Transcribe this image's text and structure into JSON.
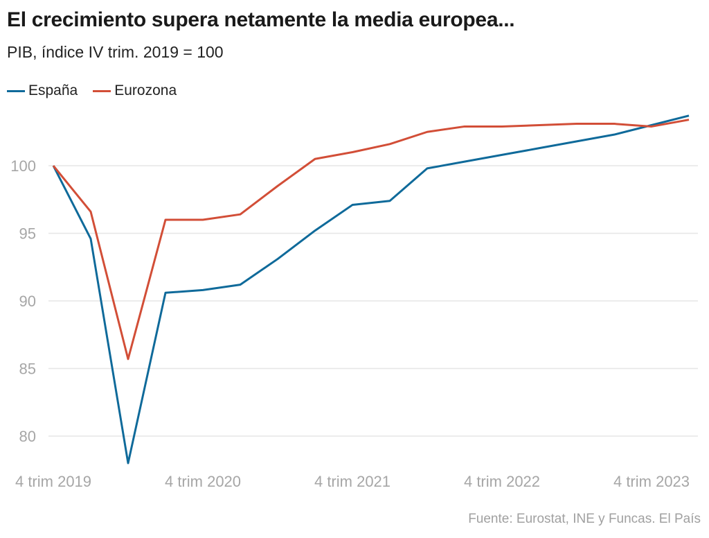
{
  "chart_data": {
    "type": "line",
    "title": "El crecimiento supera netamente la media europea...",
    "subtitle": "PIB, índice IV trim. 2019 = 100",
    "xlabel": "",
    "ylabel": "",
    "x": [
      "4 trim 2019",
      "1 trim 2020",
      "2 trim 2020",
      "3 trim 2020",
      "4 trim 2020",
      "1 trim 2021",
      "2 trim 2021",
      "3 trim 2021",
      "4 trim 2021",
      "1 trim 2022",
      "2 trim 2022",
      "3 trim 2022",
      "4 trim 2022",
      "1 trim 2023",
      "2 trim 2023",
      "3 trim 2023",
      "4 trim 2023",
      "1 trim 2024"
    ],
    "x_tick_labels": [
      {
        "index": 0,
        "label": "4 trim 2019"
      },
      {
        "index": 4,
        "label": "4 trim 2020"
      },
      {
        "index": 8,
        "label": "4 trim 2021"
      },
      {
        "index": 12,
        "label": "4 trim 2022"
      },
      {
        "index": 16,
        "label": "4 trim 2023"
      }
    ],
    "y_ticks": [
      80,
      85,
      90,
      95,
      100
    ],
    "ylim": [
      77.5,
      104
    ],
    "grid": "horizontal",
    "legend_position": "top-left",
    "series": [
      {
        "name": "España",
        "color": "#0f6a9a",
        "values": [
          100,
          94.6,
          78.0,
          90.6,
          90.8,
          91.2,
          93.1,
          95.2,
          97.1,
          97.4,
          99.8,
          100.3,
          100.8,
          101.3,
          101.8,
          102.3,
          103.0,
          103.7
        ]
      },
      {
        "name": "Eurozona",
        "color": "#d24e37",
        "values": [
          100,
          96.6,
          85.7,
          96.0,
          96.0,
          96.4,
          98.5,
          100.5,
          101.0,
          101.6,
          102.5,
          102.9,
          102.9,
          103.0,
          103.1,
          103.1,
          102.9,
          103.4
        ]
      }
    ],
    "source": "Fuente: Eurostat, INE y Funcas. El País"
  },
  "colors": {
    "grid": "#e6e6e6",
    "tick_text": "#a6a6a6"
  }
}
